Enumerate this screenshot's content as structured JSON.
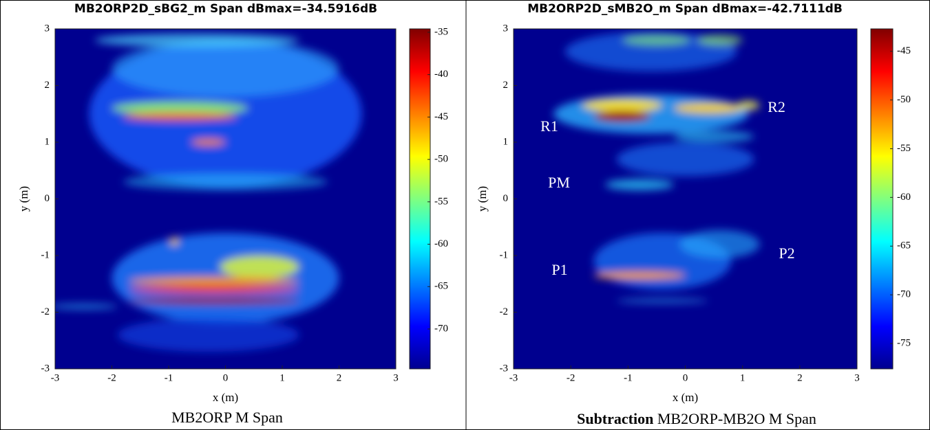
{
  "chart_data": [
    {
      "type": "heatmap",
      "title": "MB2ORP2D_sBG2_m Span dBmax=-34.5916dB",
      "xlabel": "x (m)",
      "ylabel": "y (m)",
      "xlim": [
        -3,
        3
      ],
      "ylim": [
        -3,
        3
      ],
      "xticks": [
        -3,
        -2,
        -1,
        0,
        1,
        2,
        3
      ],
      "yticks": [
        -3,
        -2,
        -1,
        0,
        1,
        2,
        3
      ],
      "clim": [
        -74.7,
        -34.6
      ],
      "cticks": [
        -70,
        -65,
        -60,
        -55,
        -50,
        -45,
        -40,
        -35
      ],
      "colormap": "jet",
      "annotations": []
    },
    {
      "type": "heatmap",
      "title": "MB2ORP2D_sMB2O_m Span dBmax=-42.7111dB",
      "xlabel": "x (m)",
      "ylabel": "y (m)",
      "xlim": [
        -3,
        3
      ],
      "ylim": [
        -3,
        3
      ],
      "xticks": [
        -3,
        -2,
        -1,
        0,
        1,
        2,
        3
      ],
      "yticks": [
        -3,
        -2,
        -1,
        0,
        1,
        2,
        3
      ],
      "clim": [
        -77.6,
        -42.7
      ],
      "cticks": [
        -75,
        -70,
        -65,
        -60,
        -55,
        -50,
        -45
      ],
      "colormap": "jet",
      "annotations": [
        "R1",
        "R2",
        "PM",
        "P1",
        "P2"
      ]
    }
  ],
  "captions": [
    {
      "bold": "",
      "text": "MB2ORP M Span"
    },
    {
      "bold": "Subtraction",
      "text": "MB2ORP-MB2O M Span"
    }
  ]
}
